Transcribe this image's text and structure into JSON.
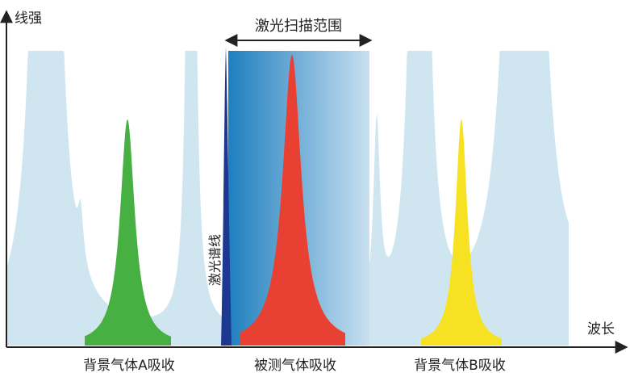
{
  "axes": {
    "y_label": "线强",
    "x_label": "波长"
  },
  "scan_range": "激光扫描范围",
  "laser_line": "激光谱线",
  "absorptions": [
    "背景气体A吸收",
    "被测气体吸收",
    "背景气体B吸收"
  ]
}
